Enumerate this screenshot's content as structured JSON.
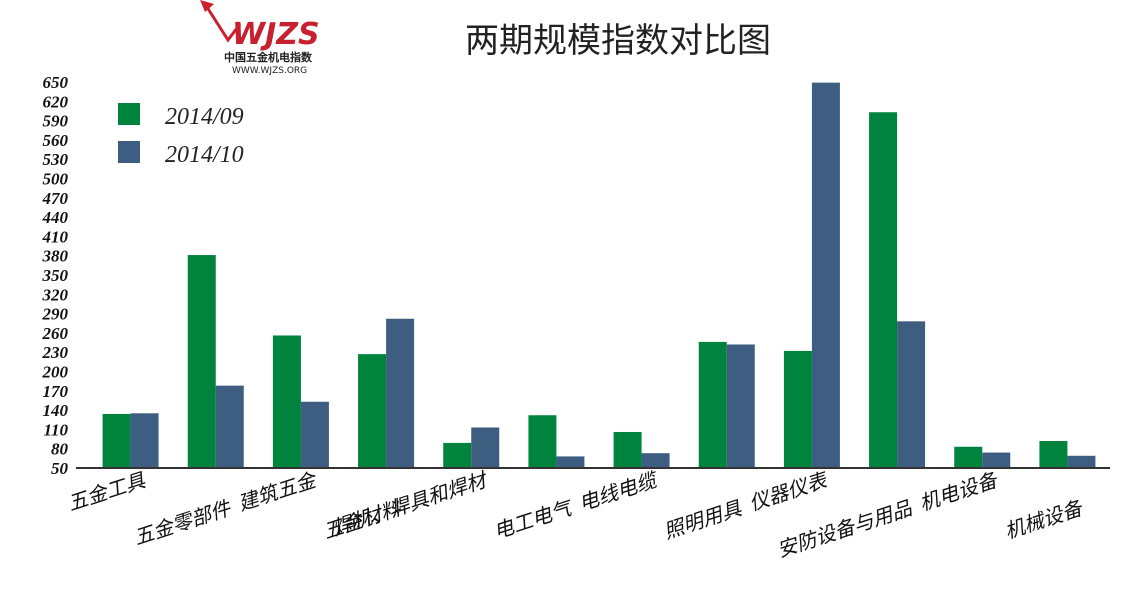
{
  "logo": {
    "mark": "WJZS",
    "subtitle": "中国五金机电指数",
    "url": "WWW.WJZS.ORG"
  },
  "colors": {
    "series_0": "#00843d",
    "series_1": "#3d5e80",
    "logo_red": "#c8202e",
    "axis": "#333333"
  },
  "chart_data": {
    "type": "bar",
    "title": "两期规模指数对比图",
    "xlabel": "",
    "ylabel": "",
    "ylim": [
      50,
      650
    ],
    "yticks": [
      50,
      80,
      110,
      140,
      170,
      200,
      230,
      260,
      290,
      320,
      350,
      380,
      410,
      440,
      470,
      500,
      530,
      560,
      590,
      620,
      650
    ],
    "grid": false,
    "legend_position": "top-left",
    "categories": [
      "五金工具",
      "五金零部件",
      "建筑五金",
      "五金材料",
      "焊机、焊具和焊材",
      "电工电气",
      "电线电缆",
      "照明用具",
      "仪器仪表",
      "安防设备与用品",
      "机电设备",
      "机械设备"
    ],
    "series": [
      {
        "name": "2014/09",
        "values": [
          134,
          381,
          256,
          227,
          89,
          132,
          106,
          246,
          232,
          603,
          83,
          92
        ]
      },
      {
        "name": "2014/10",
        "values": [
          135,
          178,
          153,
          282,
          113,
          68,
          73,
          242,
          649,
          278,
          74,
          69
        ]
      }
    ]
  }
}
